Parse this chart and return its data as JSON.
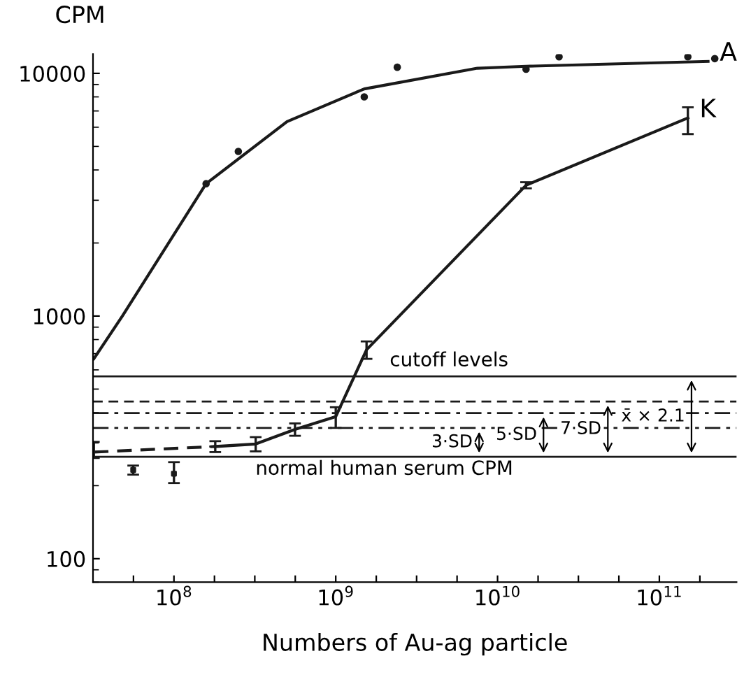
{
  "chart_data": {
    "type": "line",
    "xlabel": "Numbers of Au-ag particle",
    "ylabel": "CPM",
    "log": "xy",
    "grid": false,
    "xlim": [
      31600000.0,
      300000000000.0
    ],
    "ylim": [
      80,
      12000
    ],
    "xticks": [
      {
        "value": 56200000.0,
        "label": null
      },
      {
        "value": 100000000.0,
        "label": "10$^{8}$"
      },
      {
        "value": 178000000.0,
        "label": null
      },
      {
        "value": 316000000.0,
        "label": null
      },
      {
        "value": 562000000.0,
        "label": null
      },
      {
        "value": 1000000000.0,
        "label": "10$^{9}$"
      },
      {
        "value": 1780000000.0,
        "label": null
      },
      {
        "value": 3160000000.0,
        "label": null
      },
      {
        "value": 5620000000.0,
        "label": null
      },
      {
        "value": 10000000000.0,
        "label": "10$^{10}$"
      },
      {
        "value": 17800000000.0,
        "label": null
      },
      {
        "value": 31600000000.0,
        "label": null
      },
      {
        "value": 56200000000.0,
        "label": null
      },
      {
        "value": 100000000000.0,
        "label": "10$^{11}$"
      },
      {
        "value": 178000000000.0,
        "label": null
      }
    ],
    "yticks": [
      100,
      1000,
      10000
    ],
    "series": [
      {
        "type": "line",
        "name": "A",
        "color": "#1a1a1a",
        "marker": "none",
        "line_style": "solid",
        "x": [
          32000000.0,
          48000000.0,
          158000000.0,
          500000000.0,
          1500000000.0,
          7500000000.0,
          15000000000.0,
          200000000000.0
        ],
        "values": [
          667,
          1000,
          3510,
          6330,
          8630,
          10500,
          10700,
          11200
        ]
      },
      {
        "type": "scatter",
        "color": "#1a1a1a",
        "marker": "circle",
        "x": [
          158000000.0,
          250000000.0,
          1500000000.0,
          2400000000.0,
          15000000000.0,
          24000000000.0,
          150000000000.0,
          220000000000.0
        ],
        "values": [
          3510,
          4770,
          8000,
          10600,
          10400,
          11700,
          11700,
          11500
        ]
      },
      {
        "name": "K",
        "color": "#1a1a1a",
        "marker": "none",
        "line_style": "solid",
        "x": [
          180000000.0,
          320000000.0,
          560000000.0,
          1000000000.0,
          1550000000.0,
          15000000000.0,
          150000000000.0
        ],
        "values": [
          290,
          297,
          341,
          385,
          726,
          3460,
          6550
        ],
        "errors": [
          15,
          20,
          20,
          [
            346,
            421
          ],
          60,
          100,
          [
            5620,
            7250
          ]
        ]
      },
      {
        "type": "line",
        "color": "#1a1a1a",
        "marker": "none",
        "line_style": "dashed",
        "x": [
          32000000.0,
          180000000.0
        ],
        "values": [
          275,
          290
        ],
        "errors": [
          [
            260,
            303
          ],
          null
        ]
      },
      {
        "type": "scatter",
        "color": "#1a1a1a",
        "marker": "square",
        "x": [
          56000000.0,
          100000000.0
        ],
        "values": [
          232,
          224
        ],
        "errors": [
          10,
          [
            205,
            250
          ]
        ]
      }
    ],
    "ref_lines": [
      {
        "axis": "y",
        "value": 263,
        "label": "normal human serum CPM",
        "line_style": "solid",
        "color": "#1a1a1a"
      },
      {
        "axis": "y",
        "value": 346,
        "label": "3·SD",
        "line_style": "dashdotdot",
        "color": "#1a1a1a"
      },
      {
        "axis": "y",
        "value": 398,
        "label": "5·SD",
        "line_style": "dashdot",
        "color": "#1a1a1a"
      },
      {
        "axis": "y",
        "value": 444,
        "label": "7·SD",
        "line_style": "dashed",
        "color": "#1a1a1a"
      },
      {
        "axis": "y",
        "value": 564,
        "label": "x̄ × 2.1",
        "line_style": "solid",
        "color": "#1a1a1a"
      }
    ],
    "annotations": [
      "cutoff levels"
    ]
  }
}
